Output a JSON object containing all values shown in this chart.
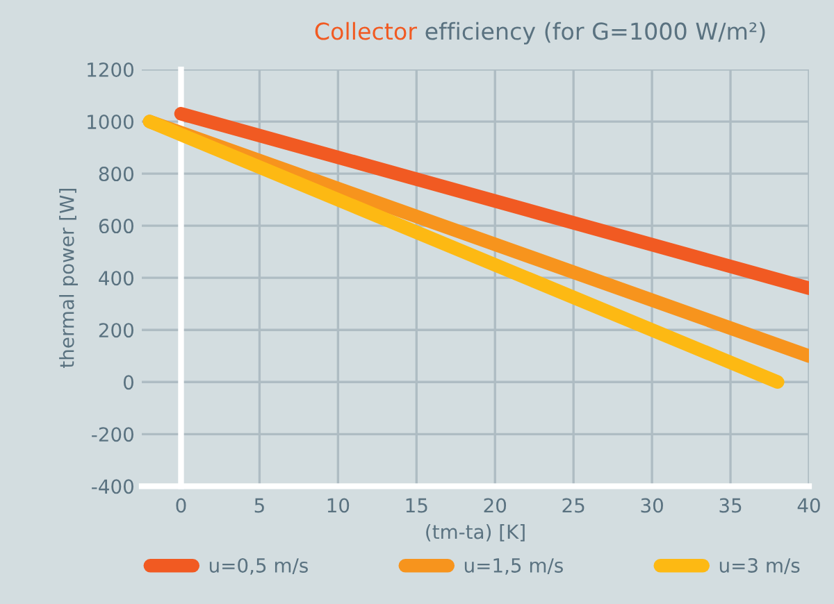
{
  "chart_data": {
    "type": "line",
    "title": "Collector efficiency (for G=1000 W/m²)",
    "xlabel": "(tm-ta) [K]",
    "ylabel": "thermal power [W]",
    "xlim": [
      -2.5,
      40
    ],
    "xticks": [
      0,
      5,
      10,
      15,
      20,
      25,
      30,
      35,
      40
    ],
    "ylim": [
      -400,
      1200
    ],
    "yticks": [
      -400,
      -200,
      0,
      200,
      400,
      600,
      800,
      1000,
      1200
    ],
    "grid": true,
    "legend": "bottom",
    "marker": "none",
    "line_style": "solid",
    "series": [
      {
        "name": "u=0,5 m/s",
        "color": "#f15a22",
        "x": [
          0,
          40
        ],
        "values": [
          1030,
          360
        ]
      },
      {
        "name": "u=1,5 m/s",
        "color": "#f7941d",
        "x": [
          -2,
          40
        ],
        "values": [
          1000,
          100
        ]
      },
      {
        "name": "u=3 m/s",
        "color": "#fdb913",
        "x": [
          -2,
          38
        ],
        "values": [
          1000,
          0
        ]
      }
    ]
  }
}
